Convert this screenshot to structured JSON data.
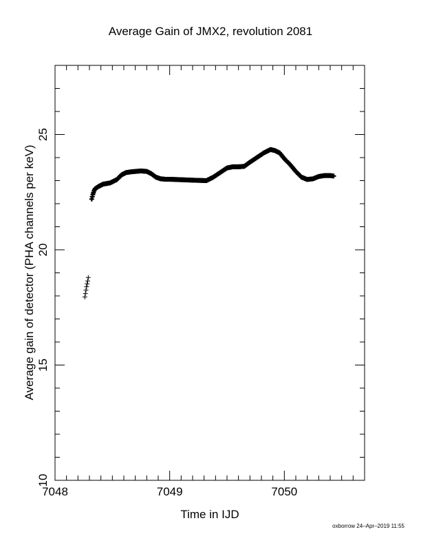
{
  "chart_data": {
    "type": "scatter",
    "title": "Average Gain of JMX2, revolution 2081",
    "xlabel": "Time in IJD",
    "ylabel": "Average gain of detector (PHA channels per keV)",
    "xlim": [
      7048,
      7050.7
    ],
    "ylim": [
      10,
      28
    ],
    "x_ticks": [
      7048,
      7049,
      7050
    ],
    "x_tick_labels": [
      "7048",
      "7049",
      "7050"
    ],
    "y_ticks": [
      10,
      15,
      20,
      25
    ],
    "y_tick_labels": [
      "10",
      "15",
      "20",
      "25"
    ],
    "marker": "+",
    "color": "#000000",
    "grid": false,
    "isolated_points": {
      "x": [
        7048.26,
        7048.265,
        7048.27,
        7048.275,
        7048.28,
        7048.285,
        7048.29
      ],
      "y": [
        17.95,
        18.1,
        18.25,
        18.4,
        18.52,
        18.65,
        18.8
      ]
    },
    "series": [
      {
        "x": [
          7048.32,
          7048.33,
          7048.34,
          7048.35,
          7048.38,
          7048.42,
          7048.48,
          7048.54,
          7048.58,
          7048.62,
          7048.66,
          7048.7,
          7048.75,
          7048.8,
          7048.84,
          7048.88,
          7048.92,
          7048.96,
          7049.0,
          7049.1,
          7049.2,
          7049.32,
          7049.38,
          7049.44,
          7049.5,
          7049.55,
          7049.6,
          7049.65,
          7049.7,
          7049.76,
          7049.82,
          7049.88,
          7049.92,
          7049.96,
          7050.0,
          7050.05,
          7050.1,
          7050.15,
          7050.2,
          7050.25,
          7050.3,
          7050.35,
          7050.4,
          7050.43
        ],
        "y": [
          22.2,
          22.4,
          22.55,
          22.65,
          22.75,
          22.85,
          22.9,
          23.05,
          23.25,
          23.35,
          23.38,
          23.4,
          23.42,
          23.4,
          23.3,
          23.15,
          23.08,
          23.06,
          23.06,
          23.04,
          23.02,
          23.0,
          23.15,
          23.35,
          23.55,
          23.6,
          23.6,
          23.62,
          23.8,
          24.0,
          24.2,
          24.35,
          24.3,
          24.2,
          23.95,
          23.7,
          23.4,
          23.15,
          23.05,
          23.08,
          23.18,
          23.22,
          23.22,
          23.2
        ]
      }
    ]
  },
  "footer": "oxborrow 24–Apr–2019 11:55"
}
